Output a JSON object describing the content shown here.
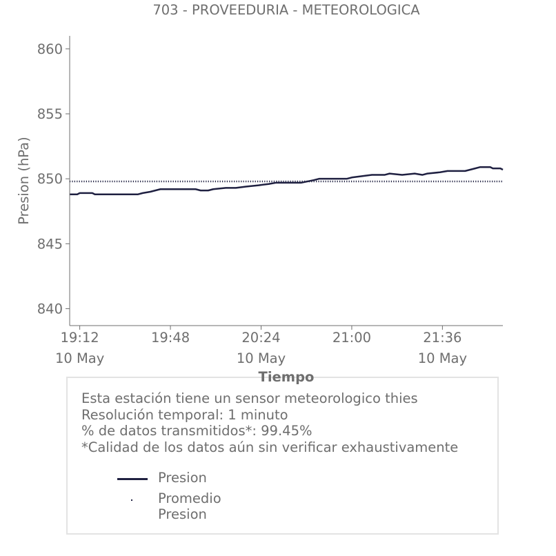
{
  "chart_data": {
    "type": "line",
    "title": "703 - PROVEEDURIA - METEOROLOGICA",
    "xlabel": "Tiempo",
    "ylabel": "Presion (hPa)",
    "ylim": [
      838.7,
      861.0
    ],
    "xlim": [
      "2024-05-10T19:08",
      "2024-05-10T22:00"
    ],
    "yticks": [
      840,
      845,
      850,
      855,
      860
    ],
    "xticks": [
      {
        "time": "2024-05-10T19:12",
        "label": "19:12",
        "sublabel": "10 May"
      },
      {
        "time": "2024-05-10T19:48",
        "label": "19:48",
        "sublabel": ""
      },
      {
        "time": "2024-05-10T20:24",
        "label": "20:24",
        "sublabel": "10 May"
      },
      {
        "time": "2024-05-10T21:00",
        "label": "21:00",
        "sublabel": ""
      },
      {
        "time": "2024-05-10T21:36",
        "label": "21:36",
        "sublabel": "10 May"
      }
    ],
    "grid": false,
    "colors": {
      "series": "#1f2041",
      "text": "#6e6e6e",
      "axis": "#6e6e6e"
    },
    "series": [
      {
        "name": "Presion",
        "style": "solid",
        "points": [
          [
            "2024-05-10T19:08",
            848.8
          ],
          [
            "2024-05-10T19:11",
            848.8
          ],
          [
            "2024-05-10T19:12",
            848.9
          ],
          [
            "2024-05-10T19:17",
            848.9
          ],
          [
            "2024-05-10T19:18",
            848.8
          ],
          [
            "2024-05-10T19:35",
            848.8
          ],
          [
            "2024-05-10T19:37",
            848.9
          ],
          [
            "2024-05-10T19:40",
            849.0
          ],
          [
            "2024-05-10T19:42",
            849.1
          ],
          [
            "2024-05-10T19:44",
            849.2
          ],
          [
            "2024-05-10T19:58",
            849.2
          ],
          [
            "2024-05-10T20:00",
            849.1
          ],
          [
            "2024-05-10T20:03",
            849.1
          ],
          [
            "2024-05-10T20:05",
            849.2
          ],
          [
            "2024-05-10T20:10",
            849.3
          ],
          [
            "2024-05-10T20:14",
            849.3
          ],
          [
            "2024-05-10T20:18",
            849.4
          ],
          [
            "2024-05-10T20:23",
            849.5
          ],
          [
            "2024-05-10T20:27",
            849.6
          ],
          [
            "2024-05-10T20:30",
            849.7
          ],
          [
            "2024-05-10T20:40",
            849.7
          ],
          [
            "2024-05-10T20:45",
            849.9
          ],
          [
            "2024-05-10T20:47",
            850.0
          ],
          [
            "2024-05-10T20:58",
            850.0
          ],
          [
            "2024-05-10T21:00",
            850.1
          ],
          [
            "2024-05-10T21:04",
            850.2
          ],
          [
            "2024-05-10T21:08",
            850.3
          ],
          [
            "2024-05-10T21:13",
            850.3
          ],
          [
            "2024-05-10T21:15",
            850.4
          ],
          [
            "2024-05-10T21:20",
            850.3
          ],
          [
            "2024-05-10T21:25",
            850.4
          ],
          [
            "2024-05-10T21:28",
            850.3
          ],
          [
            "2024-05-10T21:30",
            850.4
          ],
          [
            "2024-05-10T21:35",
            850.5
          ],
          [
            "2024-05-10T21:38",
            850.6
          ],
          [
            "2024-05-10T21:45",
            850.6
          ],
          [
            "2024-05-10T21:47",
            850.7
          ],
          [
            "2024-05-10T21:49",
            850.8
          ],
          [
            "2024-05-10T21:51",
            850.9
          ],
          [
            "2024-05-10T21:55",
            850.9
          ],
          [
            "2024-05-10T21:56",
            850.8
          ],
          [
            "2024-05-10T21:59",
            850.8
          ],
          [
            "2024-05-10T22:00",
            850.7
          ]
        ]
      },
      {
        "name": "Promedio Presion",
        "style": "dotted",
        "points": [
          [
            "2024-05-10T19:08",
            849.8
          ],
          [
            "2024-05-10T22:00",
            849.8
          ]
        ]
      }
    ]
  },
  "info": {
    "line1": "Esta estación tiene un sensor meteorologico thies",
    "line2": "Resolución temporal: 1 minuto",
    "line3": "% de datos transmitidos*: 99.45%",
    "line4": "*Calidad de los datos aún sin verificar exhaustivamente"
  },
  "legend": {
    "presion": "Presion",
    "promedio": "Promedio Presion"
  }
}
